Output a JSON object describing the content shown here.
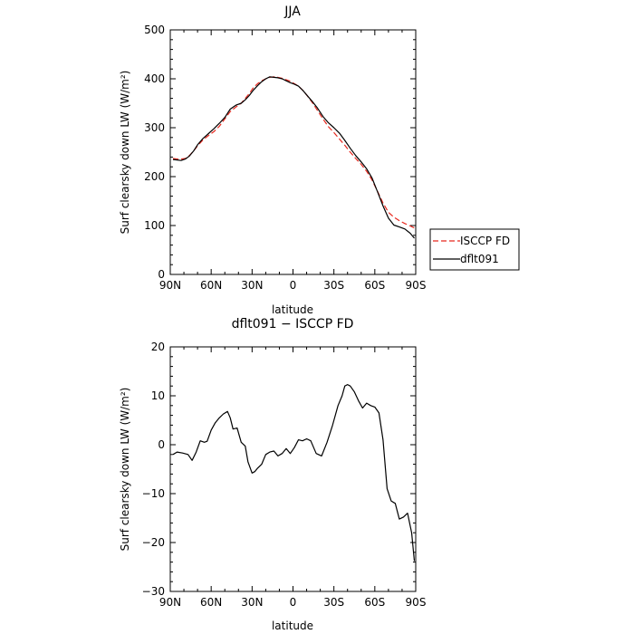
{
  "chart_data": [
    {
      "type": "line",
      "title": "JJA",
      "xlabel": "latitude",
      "ylabel": "Surf clearsky down LW (W/m²)",
      "xlim": [
        90,
        -90
      ],
      "ylim": [
        0,
        500
      ],
      "x_tick_values": [
        90,
        60,
        30,
        0,
        -30,
        -60,
        -90
      ],
      "x_tick_labels": [
        "90N",
        "60N",
        "30N",
        "0",
        "30S",
        "60S",
        "90S"
      ],
      "y_tick_values": [
        0,
        100,
        200,
        300,
        400,
        500
      ],
      "y_tick_labels": [
        "0",
        "100",
        "200",
        "300",
        "400",
        "500"
      ],
      "legend_position": "right, below plot",
      "series": [
        {
          "name": "ISCCP FD",
          "color": "#e8281e",
          "dash": "dashed",
          "x": [
            88,
            85,
            82,
            79,
            76,
            73,
            70,
            66,
            62,
            58,
            54,
            50,
            46,
            42,
            38,
            35,
            32,
            29,
            26,
            23,
            20,
            17,
            14,
            11,
            8,
            5,
            2,
            -1,
            -4,
            -7,
            -10,
            -14,
            -18,
            -22,
            -26,
            -30,
            -34,
            -38,
            -42,
            -46,
            -50,
            -54,
            -58,
            -62,
            -66,
            -70,
            -74,
            -78,
            -82,
            -86,
            -89
          ],
          "y": [
            237,
            236,
            236,
            237,
            243,
            252,
            263,
            275,
            284,
            292,
            303,
            318,
            333,
            342,
            350,
            360,
            370,
            382,
            390,
            396,
            400,
            403,
            404,
            403,
            401,
            398,
            395,
            390,
            385,
            377,
            367,
            352,
            335,
            318,
            302,
            290,
            277,
            264,
            250,
            237,
            225,
            211,
            193,
            170,
            146,
            127,
            117,
            110,
            104,
            99,
            95
          ]
        },
        {
          "name": "dflt091",
          "color": "#000000",
          "dash": "solid",
          "x": [
            88,
            85,
            82,
            79,
            76,
            73,
            70,
            66,
            62,
            58,
            54,
            50,
            46,
            42,
            38,
            35,
            32,
            29,
            26,
            23,
            20,
            17,
            14,
            11,
            8,
            5,
            2,
            -1,
            -4,
            -7,
            -10,
            -14,
            -18,
            -22,
            -26,
            -30,
            -34,
            -38,
            -42,
            -46,
            -50,
            -54,
            -58,
            -62,
            -66,
            -70,
            -74,
            -78,
            -82,
            -86,
            -89
          ],
          "y": [
            235,
            234,
            233,
            236,
            242,
            252,
            265,
            278,
            288,
            298,
            309,
            321,
            338,
            346,
            350,
            357,
            366,
            377,
            386,
            394,
            400,
            404,
            403,
            402,
            400,
            396,
            392,
            389,
            385,
            377,
            367,
            354,
            340,
            323,
            310,
            300,
            289,
            274,
            258,
            243,
            230,
            216,
            197,
            169,
            140,
            115,
            101,
            97,
            93,
            84,
            74
          ]
        }
      ]
    },
    {
      "type": "line",
      "title": "dflt091 − ISCCP FD",
      "xlabel": "latitude",
      "ylabel": "Surf clearsky down LW (W/m²)",
      "xlim": [
        90,
        -90
      ],
      "ylim": [
        -30,
        20
      ],
      "x_tick_values": [
        90,
        60,
        30,
        0,
        -30,
        -60,
        -90
      ],
      "x_tick_labels": [
        "90N",
        "60N",
        "30N",
        "0",
        "30S",
        "60S",
        "90S"
      ],
      "y_tick_values": [
        -30,
        -20,
        -10,
        0,
        10,
        20
      ],
      "y_tick_labels": [
        "−30",
        "−20",
        "−10",
        "0",
        "10",
        "20"
      ],
      "series": [
        {
          "color": "#000000",
          "dash": "solid",
          "x": [
            88,
            85,
            81,
            77,
            74,
            71,
            68,
            65,
            63,
            60,
            57,
            54,
            51,
            48,
            46,
            44,
            41,
            38,
            35,
            33,
            30,
            28,
            26,
            23,
            20,
            17,
            14,
            11,
            8,
            5,
            2,
            -1,
            -4,
            -7,
            -10,
            -13,
            -17,
            -21,
            -25,
            -29,
            -33,
            -36,
            -38,
            -40,
            -42,
            -45,
            -48,
            -51,
            -54,
            -57,
            -60,
            -63,
            -66,
            -69,
            -72,
            -75,
            -78,
            -81,
            -84,
            -87,
            -89
          ],
          "y": [
            -2,
            -1.5,
            -1.7,
            -2,
            -3.2,
            -1.5,
            0.8,
            0.5,
            0.7,
            3,
            4.5,
            5.5,
            6.3,
            6.8,
            5.5,
            3.2,
            3.4,
            0.5,
            -0.3,
            -3.5,
            -5.8,
            -5.5,
            -4.8,
            -4,
            -2,
            -1.5,
            -1.3,
            -2.3,
            -1.8,
            -0.8,
            -1.8,
            -0.6,
            1,
            0.8,
            1.2,
            0.8,
            -1.8,
            -2.3,
            0.5,
            4,
            8,
            10,
            12,
            12.3,
            12,
            10.8,
            9,
            7.5,
            8.5,
            8.0,
            7.7,
            6.5,
            1,
            -9,
            -11.5,
            -12,
            -15.2,
            -14.8,
            -14,
            -18,
            -23.8
          ]
        }
      ]
    }
  ]
}
